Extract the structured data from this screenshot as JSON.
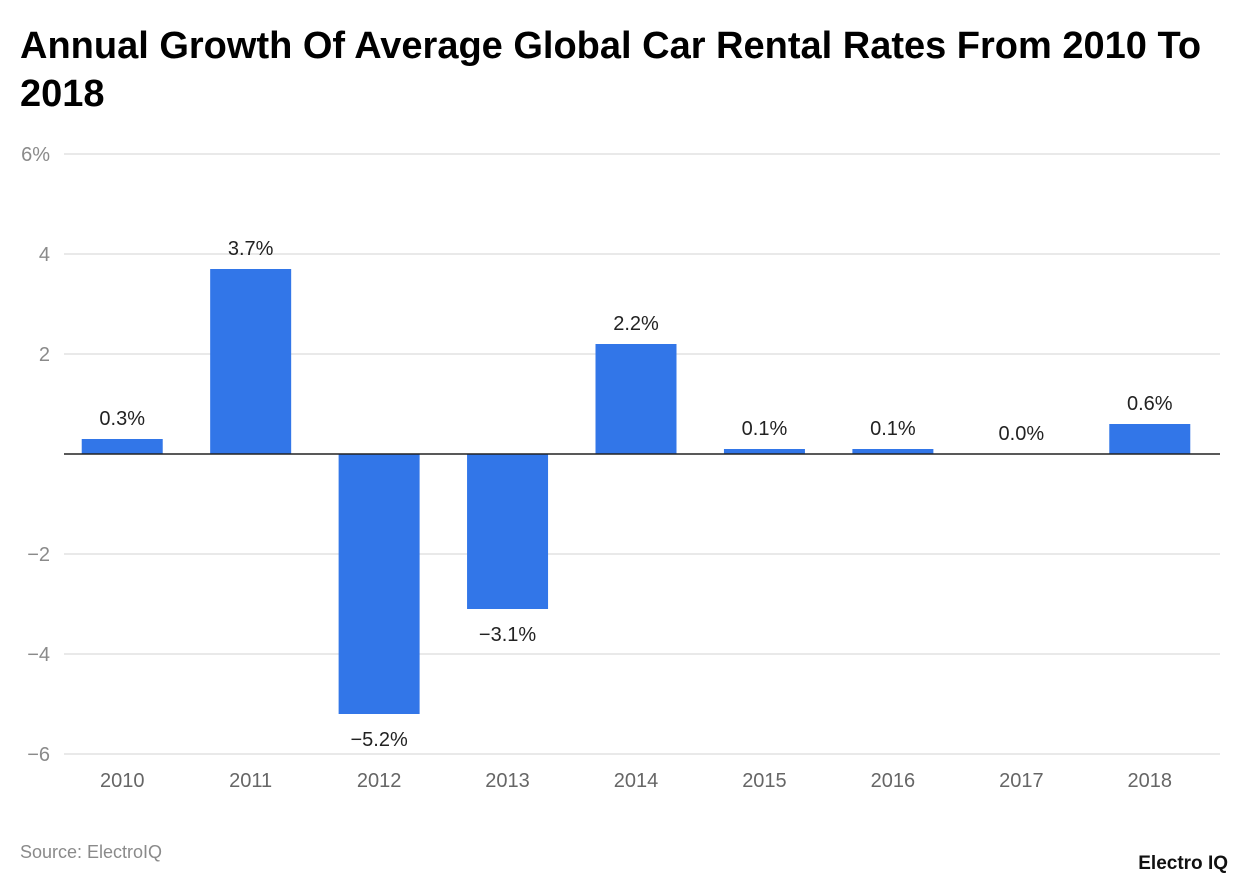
{
  "title": "Annual Growth Of Average Global Car Rental Rates From 2010 To 2018",
  "source": "Source: ElectroIQ",
  "logo": "Electro IQ",
  "colors": {
    "bar": "#3276e8",
    "grid": "#e2e2e2",
    "axis_text": "#8a8a8a"
  },
  "chart_data": {
    "type": "bar",
    "title": "Annual Growth Of Average Global Car Rental Rates From 2010 To 2018",
    "xlabel": "",
    "ylabel": "",
    "categories": [
      "2010",
      "2011",
      "2012",
      "2013",
      "2014",
      "2015",
      "2016",
      "2017",
      "2018"
    ],
    "values": [
      0.3,
      3.7,
      -5.2,
      -3.1,
      2.2,
      0.1,
      0.1,
      0.0,
      0.6
    ],
    "data_labels": [
      "0.3%",
      "3.7%",
      "−5.2%",
      "−3.1%",
      "2.2%",
      "0.1%",
      "0.1%",
      "0.0%",
      "0.6%"
    ],
    "ylim": [
      -6,
      6
    ],
    "yticks": [
      6,
      4,
      2,
      0,
      -2,
      -4,
      -6
    ],
    "ytick_labels": [
      "6%",
      "4",
      "2",
      "",
      "−2",
      "−4",
      "−6"
    ],
    "grid": true,
    "legend": "none"
  }
}
